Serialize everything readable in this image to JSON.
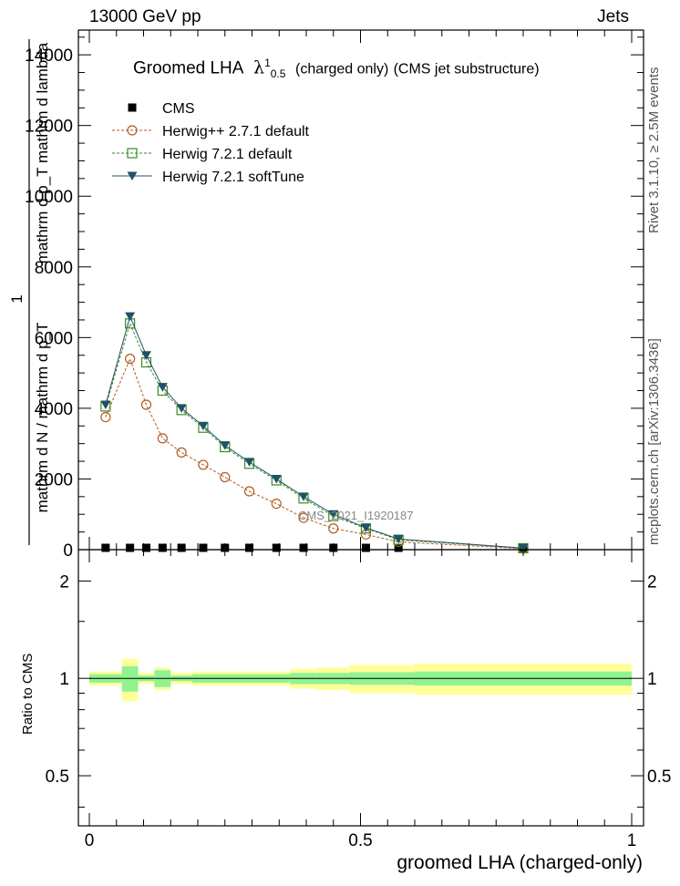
{
  "header": {
    "left": "13000 GeV pp",
    "right": "Jets"
  },
  "title": {
    "prefix": "Groomed LHA",
    "symbol": "λ",
    "sup": "1",
    "sub": "0.5",
    "suffix_small": "(charged only)",
    "suffix": "(CMS jet substructure)"
  },
  "side_text": {
    "rivet": "Rivet 3.1.10, ≥ 2.5M events",
    "mcplots": "mcplots.cern.ch [arXiv:1306.3436]"
  },
  "watermark": "CMS_2021_I1920187",
  "legend": [
    {
      "label": "CMS",
      "color": "#000000",
      "marker": "filled-square",
      "line": "none"
    },
    {
      "label": "Herwig++ 2.7.1 default",
      "color": "#b35a1f",
      "marker": "open-circle",
      "line": "dashed"
    },
    {
      "label": "Herwig 7.2.1 default",
      "color": "#3a8a1e",
      "marker": "open-square",
      "line": "dashed"
    },
    {
      "label": "Herwig 7.2.1 softTune",
      "color": "#1f5266",
      "marker": "filled-triangle-down",
      "line": "solid"
    }
  ],
  "y_axis_main": {
    "label_numerator": "mathrm d²N",
    "label_denominator": "mathrm d p_T mathrm d lambda",
    "label_prefix_num": "1",
    "label_prefix_den": "mathrm d N / mathrm d p_T",
    "tick_labels": [
      "0",
      "2000",
      "4000",
      "6000",
      "8000",
      "10000",
      "12000",
      "14000"
    ]
  },
  "y_axis_ratio": {
    "label": "Ratio to CMS",
    "tick_labels": [
      "0.5",
      "1",
      "2"
    ]
  },
  "x_axis": {
    "label": "groomed LHA (charged-only)",
    "tick_labels": [
      "0",
      "0.5",
      "1"
    ]
  },
  "chart_data": [
    {
      "type": "line",
      "panel": "main",
      "xlim": [
        0,
        1
      ],
      "ylim": [
        0,
        14700
      ],
      "x": [
        0.03,
        0.075,
        0.105,
        0.135,
        0.17,
        0.21,
        0.25,
        0.295,
        0.345,
        0.395,
        0.45,
        0.51,
        0.57,
        0.8
      ],
      "series": [
        {
          "name": "CMS",
          "values": [
            0,
            0,
            0,
            0,
            0,
            0,
            0,
            0,
            0,
            0,
            0,
            0,
            0,
            0
          ]
        },
        {
          "name": "Herwig++ 2.7.1 default",
          "values": [
            3750,
            5400,
            4100,
            3150,
            2750,
            2400,
            2050,
            1650,
            1300,
            900,
            600,
            430,
            220,
            30
          ]
        },
        {
          "name": "Herwig 7.2.1 default",
          "values": [
            4050,
            6400,
            5300,
            4500,
            3950,
            3450,
            2900,
            2430,
            1960,
            1450,
            950,
            600,
            280,
            40
          ]
        },
        {
          "name": "Herwig 7.2.1 softTune",
          "values": [
            4100,
            6600,
            5500,
            4600,
            4000,
            3500,
            2950,
            2480,
            2000,
            1500,
            1000,
            620,
            300,
            45
          ]
        }
      ]
    },
    {
      "type": "area",
      "panel": "ratio",
      "scale": "log",
      "xlim": [
        0,
        1
      ],
      "ylim": [
        0.35,
        2.5
      ],
      "bins": [
        {
          "x0": 0.0,
          "x1": 0.06,
          "inner": [
            0.97,
            1.03
          ],
          "outer": [
            0.95,
            1.05
          ]
        },
        {
          "x0": 0.06,
          "x1": 0.09,
          "inner": [
            0.91,
            1.09
          ],
          "outer": [
            0.85,
            1.15
          ]
        },
        {
          "x0": 0.09,
          "x1": 0.12,
          "inner": [
            0.98,
            1.02
          ],
          "outer": [
            0.96,
            1.04
          ]
        },
        {
          "x0": 0.12,
          "x1": 0.15,
          "inner": [
            0.94,
            1.06
          ],
          "outer": [
            0.92,
            1.08
          ]
        },
        {
          "x0": 0.15,
          "x1": 0.19,
          "inner": [
            0.98,
            1.02
          ],
          "outer": [
            0.96,
            1.04
          ]
        },
        {
          "x0": 0.19,
          "x1": 0.37,
          "inner": [
            0.97,
            1.03
          ],
          "outer": [
            0.95,
            1.05
          ]
        },
        {
          "x0": 0.37,
          "x1": 0.42,
          "inner": [
            0.96,
            1.04
          ],
          "outer": [
            0.93,
            1.07
          ]
        },
        {
          "x0": 0.42,
          "x1": 0.48,
          "inner": [
            0.96,
            1.04
          ],
          "outer": [
            0.92,
            1.08
          ]
        },
        {
          "x0": 0.48,
          "x1": 0.6,
          "inner": [
            0.955,
            1.045
          ],
          "outer": [
            0.9,
            1.1
          ]
        },
        {
          "x0": 0.6,
          "x1": 1.0,
          "inner": [
            0.95,
            1.05
          ],
          "outer": [
            0.89,
            1.11
          ]
        }
      ],
      "colors": {
        "inner": "#91f291",
        "outer": "#ffff99",
        "reference": "#000000"
      }
    }
  ]
}
